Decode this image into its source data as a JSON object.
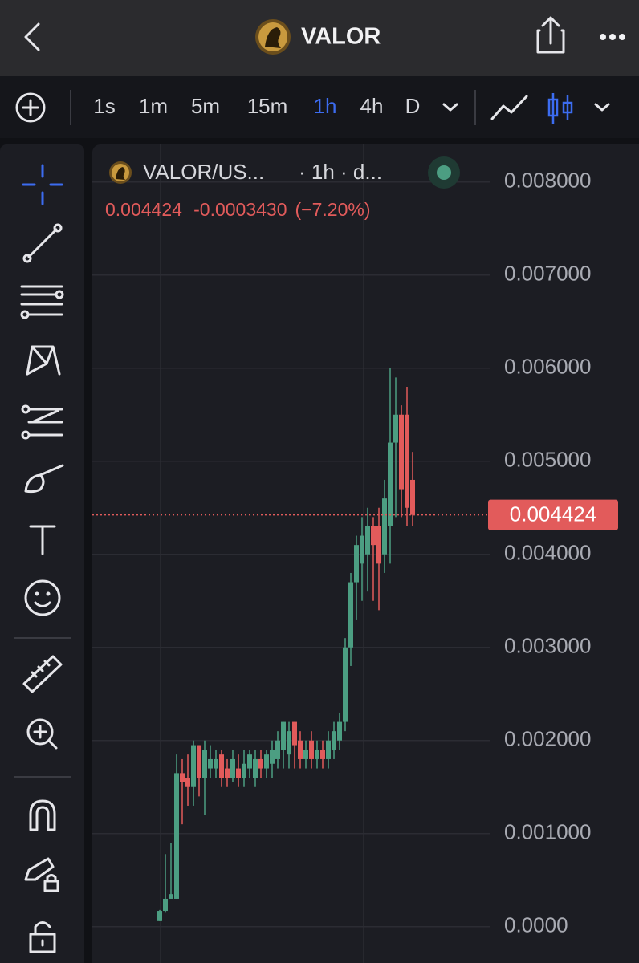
{
  "header": {
    "title": "VALOR"
  },
  "toolbar": {
    "intervals": [
      "1s",
      "1m",
      "5m",
      "15m",
      "1h",
      "4h",
      "D"
    ],
    "active": "1h"
  },
  "chart_data": {
    "type": "candlestick",
    "symbol": "VALOR/US...",
    "interval": "· 1h · d...",
    "change": "-0.0003430",
    "change_percent": "(−7.20%)",
    "last_price": 0.004424,
    "up_color": "#4c9e82",
    "down_color": "#e25b5b",
    "ylim": [
      -0.00039,
      0.00836
    ],
    "yticks": [
      {
        "value": 0.008,
        "label": "0.008000"
      },
      {
        "value": 0.007,
        "label": "0.007000"
      },
      {
        "value": 0.006,
        "label": "0.006000"
      },
      {
        "value": 0.005,
        "label": "0.005000"
      },
      {
        "value": 0.004,
        "label": "0.004000"
      },
      {
        "value": 0.003,
        "label": "0.003000"
      },
      {
        "value": 0.002,
        "label": "0.002000"
      },
      {
        "value": 0.001,
        "label": "0.001000"
      },
      {
        "value": 0,
        "label": "0.0000"
      }
    ],
    "grid": true,
    "open": [
      6e-05,
      0.00017,
      0.0003,
      0.0003,
      0.00165,
      0.0016,
      0.0015,
      0.00195,
      0.0016,
      0.0017,
      0.0017,
      0.00185,
      0.0017,
      0.0016,
      0.0017,
      0.0016,
      0.0017,
      0.0016,
      0.0018,
      0.0017,
      0.00175,
      0.0018,
      0.0019,
      0.00185,
      0.0022,
      0.002,
      0.0018,
      0.002,
      0.0018,
      0.0019,
      0.0018,
      0.0019,
      0.002,
      0.0022,
      0.003,
      0.0037,
      0.0039,
      0.004,
      0.0043,
      0.0043,
      0.004,
      0.0043,
      0.0052,
      0.0055,
      0.0055,
      0.0048
    ],
    "high": [
      0.00018,
      0.00078,
      0.0009,
      0.00185,
      0.0018,
      0.00185,
      0.002,
      0.00195,
      0.002,
      0.00195,
      0.0019,
      0.0019,
      0.0018,
      0.0019,
      0.00185,
      0.0019,
      0.0019,
      0.0019,
      0.0019,
      0.0019,
      0.002,
      0.0021,
      0.0022,
      0.0022,
      0.0022,
      0.0021,
      0.002,
      0.0021,
      0.002,
      0.002,
      0.0021,
      0.0022,
      0.0023,
      0.0031,
      0.0038,
      0.0042,
      0.0044,
      0.0045,
      0.0044,
      0.0045,
      0.0048,
      0.006,
      0.0059,
      0.0056,
      0.0058,
      0.0051
    ],
    "low": [
      6e-05,
      0.00015,
      0.0003,
      0.0003,
      0.0011,
      0.0013,
      0.0013,
      0.0014,
      0.0012,
      0.0016,
      0.0016,
      0.0015,
      0.0015,
      0.00155,
      0.0015,
      0.0015,
      0.0016,
      0.0015,
      0.0016,
      0.0016,
      0.0016,
      0.0017,
      0.0017,
      0.0017,
      0.0017,
      0.0017,
      0.0017,
      0.0017,
      0.0017,
      0.0017,
      0.0017,
      0.0018,
      0.0019,
      0.0021,
      0.0028,
      0.0033,
      0.0035,
      0.0036,
      0.0035,
      0.0034,
      0.0038,
      0.0039,
      0.0044,
      0.0044,
      0.0043,
      0.0043
    ],
    "close": [
      0.00017,
      0.0003,
      0.00035,
      0.00165,
      0.00155,
      0.0015,
      0.00195,
      0.0016,
      0.0019,
      0.0018,
      0.0018,
      0.0016,
      0.0016,
      0.0018,
      0.0016,
      0.00175,
      0.00185,
      0.0018,
      0.0017,
      0.00185,
      0.0019,
      0.002,
      0.0022,
      0.0021,
      0.00195,
      0.0018,
      0.0019,
      0.0018,
      0.0019,
      0.0018,
      0.002,
      0.0021,
      0.0022,
      0.003,
      0.0037,
      0.0041,
      0.0042,
      0.0043,
      0.0041,
      0.0039,
      0.0046,
      0.0052,
      0.0055,
      0.0047,
      0.0045,
      0.004424
    ]
  }
}
